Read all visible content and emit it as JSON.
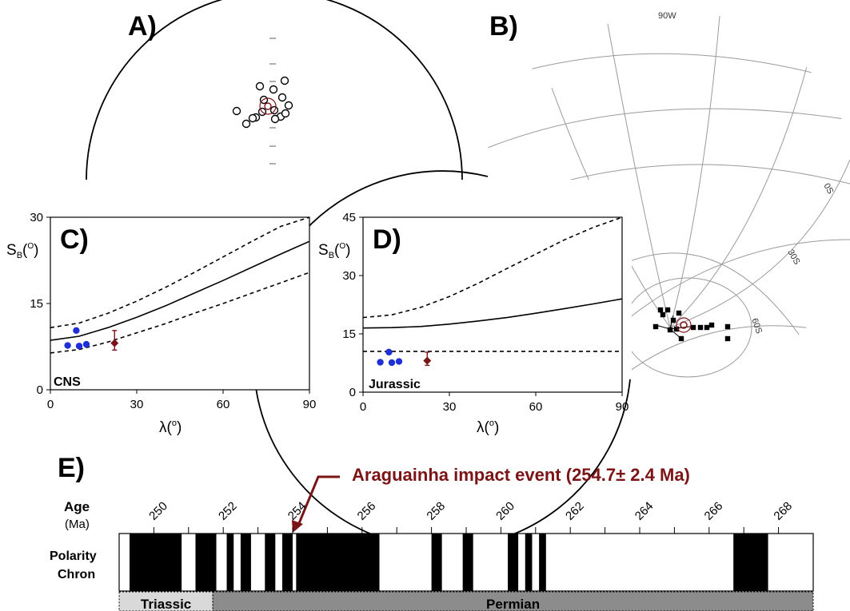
{
  "panels": {
    "a": {
      "label": "A)"
    },
    "b": {
      "label": "B)",
      "grid_labels": {
        "top": "90W",
        "lat0": "0S",
        "lat30": "30S",
        "lat60": "60S"
      }
    },
    "c": {
      "label": "C)",
      "note": "CNS"
    },
    "d": {
      "label": "D)",
      "note": "Jurassic"
    },
    "e": {
      "label": "E)"
    }
  },
  "axes_text": {
    "sb_main": "S",
    "sb_sub": "B",
    "sb_paren_open": "(",
    "sb_deg": "O",
    "sb_paren_close": ")",
    "lambda_main": "λ(",
    "lambda_deg": "o",
    "lambda_close": ")"
  },
  "timescale": {
    "age_label": "Age",
    "age_unit": "(Ma)",
    "polarity_label_1": "Polarity",
    "polarity_label_2": "Chron",
    "annotation": "Araguainha impact event (254.7± 2.4 Ma)",
    "periods": [
      {
        "name": "Triassic",
        "start": 249,
        "end": 251.7
      },
      {
        "name": "Permian",
        "start": 251.7,
        "end": 269
      }
    ],
    "ticks": [
      250,
      252,
      254,
      256,
      258,
      260,
      262,
      264,
      266,
      268
    ],
    "normal_intervals": [
      [
        249.3,
        250.8
      ],
      [
        251.2,
        251.8
      ],
      [
        252.1,
        252.3
      ],
      [
        252.5,
        252.8
      ],
      [
        253.2,
        253.5
      ],
      [
        253.7,
        254.0
      ],
      [
        254.1,
        256.5
      ],
      [
        258.0,
        258.3
      ],
      [
        258.9,
        259.2
      ],
      [
        260.2,
        260.5
      ],
      [
        260.7,
        260.9
      ],
      [
        261.1,
        261.3
      ],
      [
        266.7,
        267.7
      ]
    ],
    "colors": {
      "normal": "#000000",
      "reversed": "#ffffff",
      "triassic": "#d9d9d9",
      "permian": "#8c8c8c",
      "annotation": "#7b1416"
    }
  },
  "chart_data": [
    {
      "type": "line",
      "panel": "C",
      "annotation": "CNS",
      "xlabel": "λ(o)",
      "ylabel": "SB(O)",
      "xlim": [
        0,
        90
      ],
      "ylim": [
        0,
        30
      ],
      "xticks": [
        0,
        30,
        60,
        90
      ],
      "yticks": [
        0,
        15,
        30
      ],
      "series": [
        {
          "style": "solid",
          "x": [
            0,
            10,
            20,
            30,
            40,
            50,
            60,
            70,
            80,
            90
          ],
          "y": [
            8.6,
            9.3,
            10.8,
            12.6,
            14.6,
            16.8,
            19.0,
            21.3,
            23.6,
            25.8
          ]
        },
        {
          "style": "dashed",
          "x": [
            0,
            10,
            20,
            30,
            40,
            50,
            60,
            70,
            80,
            90
          ],
          "y": [
            10.8,
            11.6,
            13.3,
            15.4,
            17.8,
            20.4,
            23.1,
            25.8,
            28.4,
            30.0
          ]
        },
        {
          "style": "dashed",
          "x": [
            0,
            10,
            20,
            30,
            40,
            50,
            60,
            70,
            80,
            90
          ],
          "y": [
            6.4,
            7.0,
            8.3,
            9.9,
            11.5,
            13.3,
            15.0,
            16.8,
            18.6,
            20.4
          ]
        }
      ],
      "points": [
        {
          "x": 6,
          "y": 7.7
        },
        {
          "x": 9,
          "y": 10.3
        },
        {
          "x": 10,
          "y": 7.6
        },
        {
          "x": 12.5,
          "y": 7.9
        }
      ],
      "mean_point": {
        "x": 22.3,
        "y": 8.1,
        "err": [
          6.9,
          10.3
        ]
      }
    },
    {
      "type": "line",
      "panel": "D",
      "annotation": "Jurassic",
      "xlabel": "λ(o)",
      "ylabel": "SB(O)",
      "xlim": [
        0,
        90
      ],
      "ylim": [
        0,
        45
      ],
      "xticks": [
        0,
        30,
        60,
        90
      ],
      "yticks": [
        0,
        15,
        30,
        45
      ],
      "series": [
        {
          "style": "solid",
          "x": [
            0,
            10,
            20,
            30,
            40,
            50,
            60,
            70,
            80,
            90
          ],
          "y": [
            16.5,
            16.6,
            16.9,
            17.5,
            18.3,
            19.2,
            20.3,
            21.5,
            22.7,
            24.0
          ]
        },
        {
          "style": "dashed",
          "x": [
            0,
            10,
            20,
            30,
            40,
            50,
            60,
            70,
            80,
            90
          ],
          "y": [
            19.2,
            19.9,
            21.8,
            24.6,
            28.0,
            31.8,
            35.5,
            39.2,
            42.4,
            45.0
          ]
        },
        {
          "style": "dashed",
          "x": [
            0,
            90
          ],
          "y": [
            10.5,
            10.5
          ]
        }
      ],
      "points": [
        {
          "x": 6,
          "y": 7.7
        },
        {
          "x": 9,
          "y": 10.3
        },
        {
          "x": 10,
          "y": 7.6
        },
        {
          "x": 12.5,
          "y": 7.9
        }
      ],
      "mean_point": {
        "x": 22.3,
        "y": 8.1,
        "err": [
          6.9,
          10.3
        ]
      }
    }
  ]
}
